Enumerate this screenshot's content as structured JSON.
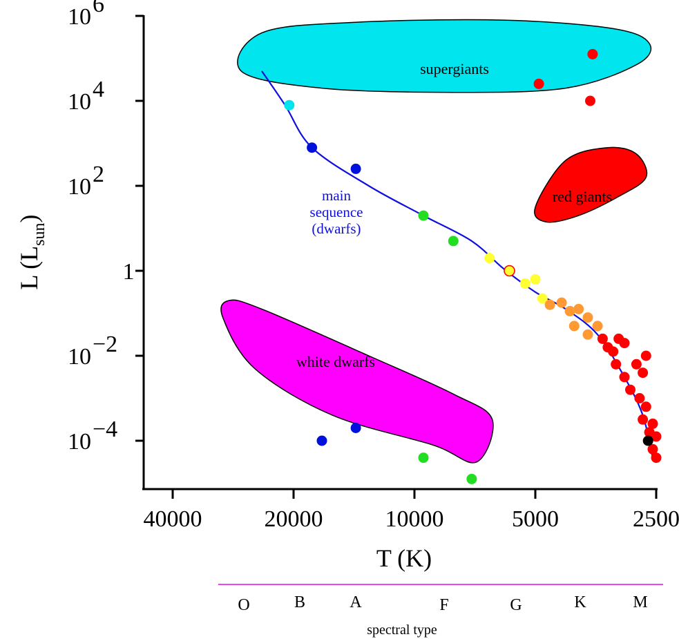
{
  "chart_data": {
    "type": "scatter",
    "title": "",
    "xlabel": "T (K)",
    "ylabel_main": "L (L",
    "ylabel_sub": "sun",
    "ylabel_close": ")",
    "x_scale": "log-reversed",
    "xlim": [
      44000,
      2500
    ],
    "ylim_log10": [
      -6,
      6
    ],
    "x_ticks": [
      {
        "value": 40000,
        "label": "40000"
      },
      {
        "value": 20000,
        "label": "20000"
      },
      {
        "value": 10000,
        "label": "10000"
      },
      {
        "value": 5000,
        "label": "5000"
      },
      {
        "value": 2500,
        "label": "2500"
      }
    ],
    "y_ticks": [
      {
        "log": 6,
        "base": "10",
        "exp": "6"
      },
      {
        "log": 4,
        "base": "10",
        "exp": "4"
      },
      {
        "log": 2,
        "base": "10",
        "exp": "2"
      },
      {
        "log": 0,
        "base": "1",
        "exp": ""
      },
      {
        "log": -2,
        "base": "10",
        "exp": "−2"
      },
      {
        "log": -4,
        "base": "10",
        "exp": "−4"
      }
    ],
    "regions": [
      {
        "name": "supergiants",
        "color": "#00e5ee",
        "points": [
          [
            24000,
            5.6
          ],
          [
            14000,
            5.85
          ],
          [
            6000,
            5.9
          ],
          [
            3200,
            5.7
          ],
          [
            2600,
            5.35
          ],
          [
            2800,
            4.85
          ],
          [
            4200,
            4.3
          ],
          [
            8000,
            4.2
          ],
          [
            17000,
            4.3
          ],
          [
            27000,
            4.7
          ]
        ]
      },
      {
        "name": "red giants",
        "color": "#ff0000",
        "points": [
          [
            4200,
            2.6
          ],
          [
            3300,
            2.9
          ],
          [
            2800,
            2.75
          ],
          [
            2650,
            2.2
          ],
          [
            3100,
            1.75
          ],
          [
            3900,
            1.3
          ],
          [
            4700,
            1.15
          ],
          [
            5000,
            1.5
          ]
        ]
      },
      {
        "name": "white dwarfs",
        "color": "#ff00ff",
        "points": [
          [
            29000,
            -0.7
          ],
          [
            24000,
            -0.9
          ],
          [
            13000,
            -2.0
          ],
          [
            8000,
            -2.9
          ],
          [
            6400,
            -3.5
          ],
          [
            7000,
            -4.5
          ],
          [
            9000,
            -4.1
          ],
          [
            16000,
            -3.4
          ],
          [
            25000,
            -2.3
          ],
          [
            30000,
            -1.1
          ]
        ]
      }
    ],
    "main_sequence_label": [
      "main",
      "sequence",
      "(dwarfs)"
    ],
    "main_sequence_line": [
      [
        24000,
        4.7
      ],
      [
        21000,
        3.9
      ],
      [
        18000,
        2.9
      ],
      [
        13000,
        2.0
      ],
      [
        9500,
        1.3
      ],
      [
        7200,
        0.7
      ],
      [
        6000,
        0.05
      ],
      [
        5000,
        -0.5
      ],
      [
        4200,
        -0.9
      ],
      [
        3500,
        -1.5
      ],
      [
        3000,
        -2.5
      ],
      [
        2700,
        -3.4
      ],
      [
        2550,
        -4.4
      ]
    ],
    "stars": [
      {
        "t": 20500,
        "logL": 3.9,
        "color": "#00e5ee"
      },
      {
        "t": 18000,
        "logL": 2.9,
        "color": "#0010dd"
      },
      {
        "t": 14000,
        "logL": 2.4,
        "color": "#0010dd"
      },
      {
        "t": 9500,
        "logL": 1.3,
        "color": "#22dd22"
      },
      {
        "t": 8000,
        "logL": 0.7,
        "color": "#22dd22"
      },
      {
        "t": 6500,
        "logL": 0.3,
        "color": "#ffff33"
      },
      {
        "t": 5800,
        "logL": 0.0,
        "color": "#ffff33",
        "ring": "#ff0000"
      },
      {
        "t": 5300,
        "logL": -0.3,
        "color": "#ffff33"
      },
      {
        "t": 5000,
        "logL": -0.2,
        "color": "#ffff33"
      },
      {
        "t": 4800,
        "logL": -0.65,
        "color": "#ffff33"
      },
      {
        "t": 4600,
        "logL": -0.8,
        "color": "#ff9933"
      },
      {
        "t": 4300,
        "logL": -0.75,
        "color": "#ff9933"
      },
      {
        "t": 4100,
        "logL": -0.95,
        "color": "#ff9933"
      },
      {
        "t": 3900,
        "logL": -0.9,
        "color": "#ff9933"
      },
      {
        "t": 4000,
        "logL": -1.3,
        "color": "#ff9933"
      },
      {
        "t": 3700,
        "logL": -1.1,
        "color": "#ff9933"
      },
      {
        "t": 3700,
        "logL": -1.5,
        "color": "#ff9933"
      },
      {
        "t": 3500,
        "logL": -1.3,
        "color": "#ff9933"
      },
      {
        "t": 3400,
        "logL": -1.6,
        "color": "#ff0000"
      },
      {
        "t": 3300,
        "logL": -1.8,
        "color": "#ff0000"
      },
      {
        "t": 3200,
        "logL": -1.9,
        "color": "#ff0000"
      },
      {
        "t": 3100,
        "logL": -1.6,
        "color": "#ff0000"
      },
      {
        "t": 3000,
        "logL": -1.7,
        "color": "#ff0000"
      },
      {
        "t": 3150,
        "logL": -2.2,
        "color": "#ff0000"
      },
      {
        "t": 3000,
        "logL": -2.5,
        "color": "#ff0000"
      },
      {
        "t": 2900,
        "logL": -2.8,
        "color": "#ff0000"
      },
      {
        "t": 2800,
        "logL": -2.2,
        "color": "#ff0000"
      },
      {
        "t": 2700,
        "logL": -2.4,
        "color": "#ff0000"
      },
      {
        "t": 2650,
        "logL": -2.0,
        "color": "#ff0000"
      },
      {
        "t": 2750,
        "logL": -3.0,
        "color": "#ff0000"
      },
      {
        "t": 2700,
        "logL": -3.5,
        "color": "#ff0000"
      },
      {
        "t": 2650,
        "logL": -3.2,
        "color": "#ff0000"
      },
      {
        "t": 2600,
        "logL": -3.8,
        "color": "#ff0000"
      },
      {
        "t": 2550,
        "logL": -3.6,
        "color": "#ff0000"
      },
      {
        "t": 2550,
        "logL": -4.2,
        "color": "#ff0000"
      },
      {
        "t": 2500,
        "logL": -3.9,
        "color": "#ff0000"
      },
      {
        "t": 2500,
        "logL": -4.4,
        "color": "#ff0000"
      },
      {
        "t": 2620,
        "logL": -4.0,
        "color": "#000000"
      },
      {
        "t": 4900,
        "logL": 4.4,
        "color": "#ff0000"
      },
      {
        "t": 3600,
        "logL": 5.1,
        "color": "#ff0000"
      },
      {
        "t": 3650,
        "logL": 4.0,
        "color": "#ff0000"
      },
      {
        "t": 17000,
        "logL": -4.0,
        "color": "#0010dd"
      },
      {
        "t": 14000,
        "logL": -3.7,
        "color": "#0010dd"
      },
      {
        "t": 9500,
        "logL": -4.4,
        "color": "#22dd22"
      },
      {
        "t": 7200,
        "logL": -4.9,
        "color": "#22dd22"
      }
    ],
    "spectral_types": [
      {
        "label": "O",
        "t": 30000
      },
      {
        "label": "B",
        "t": 20000
      },
      {
        "label": "A",
        "t": 13000
      },
      {
        "label": "F",
        "t": 7800
      },
      {
        "label": "G",
        "t": 5000
      },
      {
        "label": "K",
        "t": 3600
      },
      {
        "label": "M",
        "t": 2700
      }
    ],
    "spectral_title": "spectral type",
    "spectral_line_color": "#ee44ee",
    "grid": false,
    "legend": "none"
  }
}
